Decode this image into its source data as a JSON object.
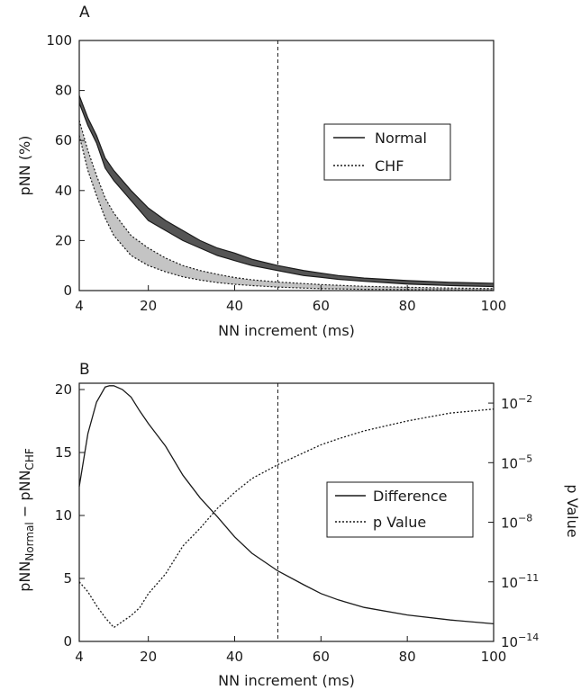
{
  "chart_data": [
    {
      "panel_letter": "A",
      "type": "line",
      "xlabel": "NN increment (ms)",
      "ylabel": "pNN (%)",
      "xlim": [
        4,
        100
      ],
      "ylim": [
        0,
        100
      ],
      "xticks": [
        4,
        20,
        40,
        60,
        80,
        100
      ],
      "yticks": [
        0,
        20,
        40,
        60,
        80,
        100
      ],
      "legend_position": "center-right",
      "reference_line_x": 50,
      "series": [
        {
          "name": "Normal",
          "style": "solid",
          "band_color": "#555555",
          "x": [
            4,
            6,
            8,
            10,
            12,
            16,
            20,
            24,
            28,
            32,
            36,
            40,
            44,
            50,
            56,
            60,
            64,
            70,
            80,
            90,
            100
          ],
          "lower": [
            75,
            66,
            59,
            49,
            44,
            36,
            28,
            24,
            20,
            17,
            14,
            12,
            10,
            8,
            6,
            5.3,
            4.5,
            3.7,
            2.6,
            2,
            1.6
          ],
          "upper": [
            78,
            69,
            62,
            53,
            48,
            40,
            33,
            28,
            24,
            20,
            17,
            15,
            12.5,
            10,
            8,
            7,
            6,
            5,
            4,
            3.3,
            2.9
          ]
        },
        {
          "name": "CHF",
          "style": "dotted",
          "band_color": "#c4c4c4",
          "x": [
            4,
            6,
            8,
            10,
            12,
            16,
            20,
            24,
            28,
            32,
            36,
            40,
            44,
            50,
            56,
            60,
            64,
            70,
            80,
            90,
            100
          ],
          "lower": [
            62,
            48,
            38,
            29,
            22,
            14,
            10,
            7.5,
            5.5,
            4.2,
            3.2,
            2.5,
            2,
            1.4,
            1,
            0.8,
            0.7,
            0.5,
            0.4,
            0.3,
            0.2
          ],
          "upper": [
            68,
            56,
            46,
            37,
            31,
            22,
            17,
            13,
            10,
            8,
            6.5,
            5.2,
            4.3,
            3.4,
            2.8,
            2.4,
            2.1,
            1.7,
            1.3,
            1,
            0.8
          ]
        }
      ]
    },
    {
      "panel_letter": "B",
      "type": "line",
      "xlabel": "NN increment (ms)",
      "ylabel": {
        "base": "pNN",
        "sub1": "Normal",
        "minus": " − ",
        "base2": "pNN",
        "sub2": "CHF"
      },
      "y2label": "p Value",
      "xlim": [
        4,
        100
      ],
      "ylim": [
        0,
        20.5
      ],
      "y2_scale": "log",
      "y2lim": [
        1e-14,
        0.1
      ],
      "xticks": [
        4,
        20,
        40,
        60,
        80,
        100
      ],
      "yticks": [
        0,
        5,
        10,
        15,
        20
      ],
      "y2ticks": [
        {
          "exp": -14,
          "base": "10",
          "power": "−14"
        },
        {
          "exp": -11,
          "base": "10",
          "power": "−11"
        },
        {
          "exp": -8,
          "base": "10",
          "power": "−8"
        },
        {
          "exp": -5,
          "base": "10",
          "power": "−5"
        },
        {
          "exp": -2,
          "base": "10",
          "power": "−2"
        }
      ],
      "legend_position": "center-right",
      "reference_line_x": 50,
      "series": [
        {
          "name": "Difference",
          "style": "solid",
          "axis": "left",
          "x": [
            4,
            6,
            8,
            10,
            11,
            12,
            14,
            16,
            18,
            20,
            24,
            28,
            32,
            36,
            40,
            44,
            50,
            56,
            60,
            64,
            70,
            80,
            90,
            100
          ],
          "y": [
            12.3,
            16.5,
            19,
            20.2,
            20.3,
            20.3,
            20,
            19.4,
            18.3,
            17.3,
            15.5,
            13.2,
            11.4,
            9.9,
            8.3,
            7,
            5.6,
            4.5,
            3.8,
            3.3,
            2.7,
            2.1,
            1.7,
            1.4
          ]
        },
        {
          "name": "p Value",
          "style": "dotted",
          "axis": "right",
          "x": [
            4,
            6,
            8,
            10,
            12,
            14,
            16,
            18,
            20,
            24,
            28,
            32,
            36,
            40,
            44,
            50,
            56,
            60,
            64,
            70,
            80,
            90,
            100
          ],
          "log10_y": [
            -11,
            -11.5,
            -12.2,
            -12.8,
            -13.3,
            -13.0,
            -12.7,
            -12.3,
            -11.6,
            -10.6,
            -9.2,
            -8.3,
            -7.3,
            -6.5,
            -5.8,
            -5.1,
            -4.5,
            -4.1,
            -3.8,
            -3.4,
            -2.9,
            -2.5,
            -2.3
          ]
        }
      ]
    }
  ]
}
